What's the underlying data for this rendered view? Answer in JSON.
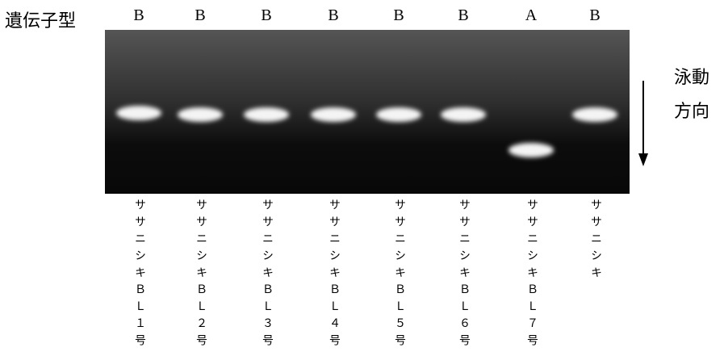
{
  "header": {
    "label": "遺伝子型"
  },
  "lanes": [
    {
      "genotype": "B",
      "name": "ササニシキＢＬ１号"
    },
    {
      "genotype": "B",
      "name": "ササニシキＢＬ２号"
    },
    {
      "genotype": "B",
      "name": "ササニシキＢＬ３号"
    },
    {
      "genotype": "B",
      "name": "ササニシキＢＬ４号"
    },
    {
      "genotype": "B",
      "name": "ササニシキＢＬ５号"
    },
    {
      "genotype": "B",
      "name": "ササニシキＢＬ６号"
    },
    {
      "genotype": "A",
      "name": "ササニシキＢＬ７号"
    },
    {
      "genotype": "B",
      "name": "ササニシキ"
    }
  ],
  "direction": {
    "line1": "泳動",
    "line2": "方向"
  }
}
